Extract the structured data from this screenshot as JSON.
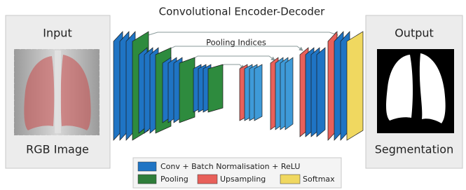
{
  "title": "Convolutional Encoder-Decoder",
  "input": {
    "title": "Input",
    "caption": "RGB Image"
  },
  "output": {
    "title": "Output",
    "caption": "Segmentation"
  },
  "annotation": "Pooling Indices",
  "legend": [
    "Conv + Batch Normalisation + ReLU",
    "Pooling",
    "Upsampling",
    "Softmax"
  ]
}
